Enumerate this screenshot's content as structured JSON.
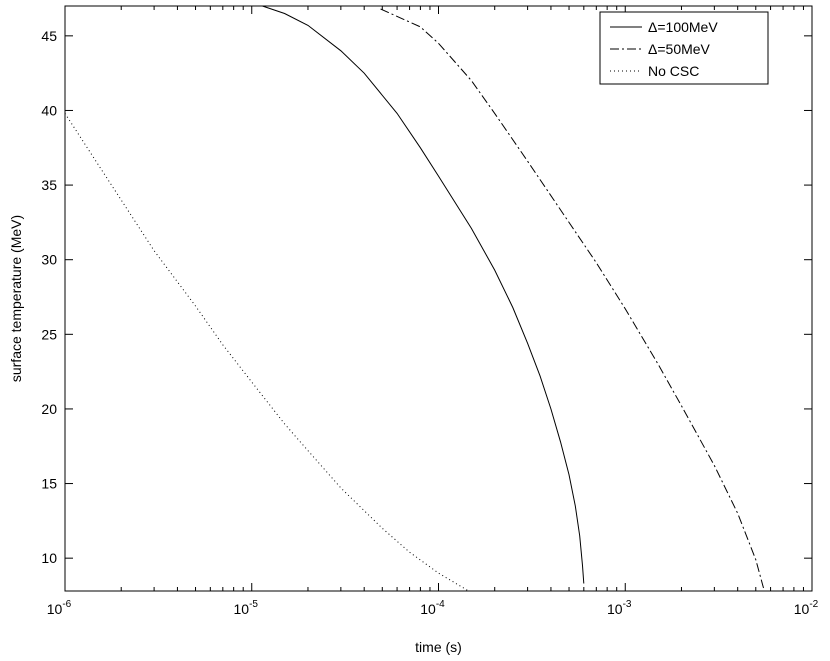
{
  "chart_data": {
    "type": "line",
    "title": "",
    "xlabel": "time (s)",
    "ylabel": "surface temperature (MeV)",
    "x_scale": "log",
    "xlim": [
      1e-06,
      0.01
    ],
    "ylim": [
      7.8,
      47
    ],
    "grid": false,
    "legend_position": "top-right",
    "x_ticks": [
      {
        "base": "10",
        "exp": "-6",
        "value": 1e-06
      },
      {
        "base": "10",
        "exp": "-5",
        "value": 1e-05
      },
      {
        "base": "10",
        "exp": "-4",
        "value": 0.0001
      },
      {
        "base": "10",
        "exp": "-3",
        "value": 0.001
      },
      {
        "base": "10",
        "exp": "-2",
        "value": 0.01
      }
    ],
    "y_ticks": [
      {
        "label": "10",
        "value": 10
      },
      {
        "label": "15",
        "value": 15
      },
      {
        "label": "20",
        "value": 20
      },
      {
        "label": "25",
        "value": 25
      },
      {
        "label": "30",
        "value": 30
      },
      {
        "label": "35",
        "value": 35
      },
      {
        "label": "40",
        "value": 40
      },
      {
        "label": "45",
        "value": 45
      }
    ],
    "series": [
      {
        "name": "Δ=100MeV",
        "style": "solid",
        "color": "#000000",
        "points": [
          [
            1.14e-05,
            47.0
          ],
          [
            1.5e-05,
            46.5
          ],
          [
            2e-05,
            45.7
          ],
          [
            3e-05,
            44.0
          ],
          [
            4e-05,
            42.5
          ],
          [
            6e-05,
            39.8
          ],
          [
            8e-05,
            37.5
          ],
          [
            0.0001,
            35.6
          ],
          [
            0.00015,
            32.1
          ],
          [
            0.0002,
            29.3
          ],
          [
            0.00025,
            26.8
          ],
          [
            0.0003,
            24.4
          ],
          [
            0.00035,
            22.2
          ],
          [
            0.0004,
            20.0
          ],
          [
            0.00045,
            17.8
          ],
          [
            0.0005,
            15.6
          ],
          [
            0.00054,
            13.5
          ],
          [
            0.00057,
            11.5
          ],
          [
            0.00059,
            9.5
          ],
          [
            0.0006,
            8.3
          ]
        ]
      },
      {
        "name": "Δ=50MeV",
        "style": "dashdot",
        "color": "#000000",
        "points": [
          [
            4.9e-05,
            46.8
          ],
          [
            6e-05,
            46.3
          ],
          [
            8e-05,
            45.6
          ],
          [
            0.0001,
            44.5
          ],
          [
            0.00015,
            42.0
          ],
          [
            0.0002,
            39.8
          ],
          [
            0.0003,
            36.6
          ],
          [
            0.0005,
            32.5
          ],
          [
            0.0007,
            29.8
          ],
          [
            0.001,
            26.7
          ],
          [
            0.0015,
            23.0
          ],
          [
            0.002,
            20.2
          ],
          [
            0.003,
            16.2
          ],
          [
            0.004,
            13.0
          ],
          [
            0.005,
            9.9
          ],
          [
            0.0055,
            8.0
          ]
        ]
      },
      {
        "name": "No CSC",
        "style": "dotted",
        "color": "#000000",
        "points": [
          [
            1e-06,
            39.8
          ],
          [
            1.5e-06,
            36.4
          ],
          [
            2e-06,
            34.0
          ],
          [
            3e-06,
            30.6
          ],
          [
            5e-06,
            26.9
          ],
          [
            7e-06,
            24.3
          ],
          [
            1e-05,
            21.8
          ],
          [
            1.5e-05,
            19.0
          ],
          [
            2e-05,
            17.2
          ],
          [
            3e-05,
            14.7
          ],
          [
            5e-05,
            12.0
          ],
          [
            7e-05,
            10.4
          ],
          [
            0.0001,
            9.0
          ],
          [
            0.000145,
            7.8
          ]
        ]
      }
    ]
  }
}
